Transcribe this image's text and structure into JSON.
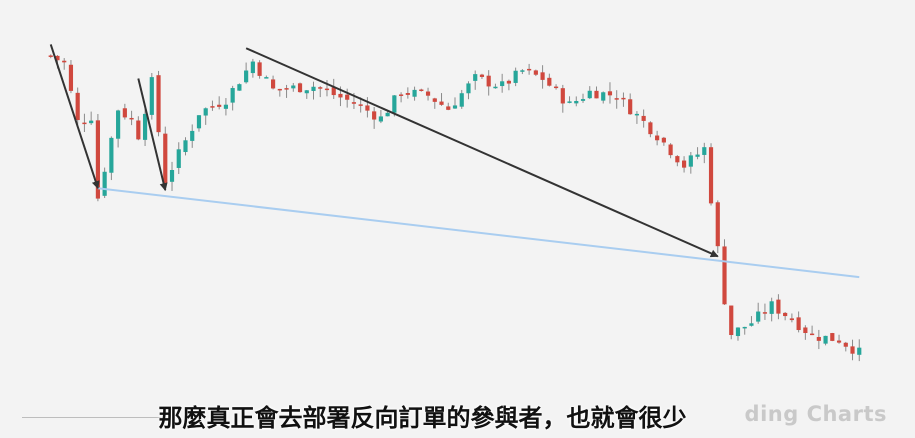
{
  "caption": "那麼真正會去部署反向訂單的參與者，也就會很少",
  "watermark": "ding Charts",
  "colors": {
    "up": "#26a69a",
    "down": "#d0483e",
    "wick": "#8a8a8a",
    "trendline": "#333333",
    "support_line": "#a9cdf0",
    "background": "#f3f3f3"
  },
  "chart_data": {
    "type": "candlestick",
    "title": "",
    "xlabel": "",
    "ylabel": "",
    "grid": false,
    "legend": "none",
    "price_path": [
      [
        0,
        90
      ],
      [
        2,
        86
      ],
      [
        4,
        55
      ],
      [
        6,
        58
      ],
      [
        7,
        15
      ],
      [
        10,
        62
      ],
      [
        12,
        56
      ],
      [
        13,
        48
      ],
      [
        15,
        76
      ],
      [
        17,
        24
      ],
      [
        21,
        52
      ],
      [
        22,
        60
      ],
      [
        26,
        67
      ],
      [
        30,
        87
      ],
      [
        33,
        72
      ],
      [
        39,
        74
      ],
      [
        45,
        65
      ],
      [
        49,
        57
      ],
      [
        52,
        71
      ],
      [
        56,
        69
      ],
      [
        59,
        62
      ],
      [
        63,
        78
      ],
      [
        67,
        74
      ],
      [
        70,
        82
      ],
      [
        73,
        78
      ],
      [
        77,
        64
      ],
      [
        80,
        71
      ],
      [
        84,
        69
      ],
      [
        90,
        48
      ],
      [
        94,
        32
      ],
      [
        97,
        41
      ],
      [
        100,
        -39
      ],
      [
        101,
        -57
      ],
      [
        104,
        -51
      ],
      [
        107,
        -42
      ],
      [
        110,
        -49
      ],
      [
        113,
        -58
      ],
      [
        117,
        -60
      ],
      [
        120,
        -67
      ]
    ],
    "annotations": [
      {
        "type": "arrow",
        "from": [
          0,
          96
        ],
        "to": [
          7,
          20
        ]
      },
      {
        "type": "arrow",
        "from": [
          13,
          78
        ],
        "to": [
          17,
          19
        ]
      },
      {
        "type": "arrow",
        "from": [
          29,
          94
        ],
        "to": [
          99,
          -16
        ]
      },
      {
        "type": "line",
        "from": [
          7,
          20
        ],
        "to": [
          120,
          -27
        ]
      }
    ],
    "xlim": [
      -1,
      121
    ],
    "ylim": [
      -74,
      101
    ]
  }
}
